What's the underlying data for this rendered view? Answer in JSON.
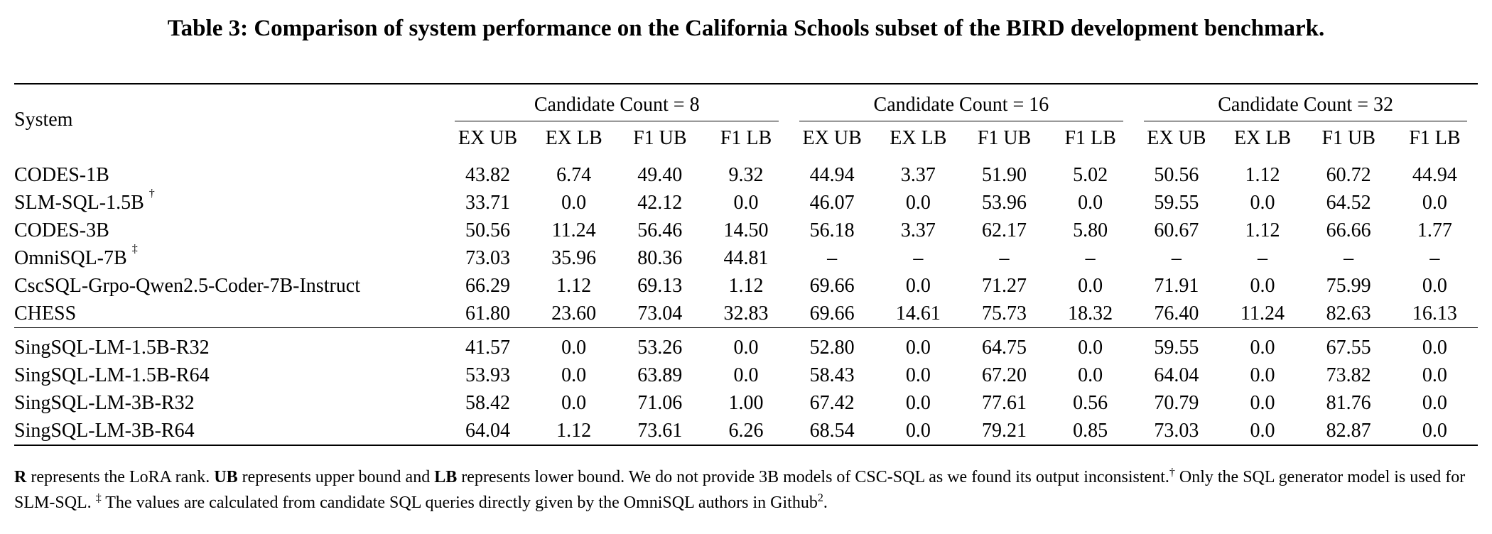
{
  "caption": "Table 3: Comparison of system performance on the California Schools subset of the BIRD development benchmark.",
  "header": {
    "system": "System",
    "groups": [
      "Candidate Count = 8",
      "Candidate Count = 16",
      "Candidate Count = 32"
    ],
    "metrics": [
      "EX UB",
      "EX LB",
      "F1 UB",
      "F1 LB"
    ]
  },
  "rows": [
    {
      "name": "CODES-1B",
      "mark": "",
      "values": [
        "43.82",
        "6.74",
        "49.40",
        "9.32",
        "44.94",
        "3.37",
        "51.90",
        "5.02",
        "50.56",
        "1.12",
        "60.72",
        "44.94"
      ],
      "bold": []
    },
    {
      "name": "SLM-SQL-1.5B",
      "mark": "†",
      "values": [
        "33.71",
        "0.0",
        "42.12",
        "0.0",
        "46.07",
        "0.0",
        "53.96",
        "0.0",
        "59.55",
        "0.0",
        "64.52",
        "0.0"
      ],
      "bold": []
    },
    {
      "name": "CODES-3B",
      "mark": "",
      "values": [
        "50.56",
        "11.24",
        "56.46",
        "14.50",
        "56.18",
        "3.37",
        "62.17",
        "5.80",
        "60.67",
        "1.12",
        "66.66",
        "1.77"
      ],
      "bold": []
    },
    {
      "name": "OmniSQL-7B",
      "mark": "‡",
      "values": [
        "73.03",
        "35.96",
        "80.36",
        "44.81",
        "–",
        "–",
        "–",
        "–",
        "–",
        "–",
        "–",
        "–"
      ],
      "bold": [
        2
      ]
    },
    {
      "name": "CscSQL-Grpo-Qwen2.5-Coder-7B-Instruct",
      "mark": "",
      "values": [
        "66.29",
        "1.12",
        "69.13",
        "1.12",
        "69.66",
        "0.0",
        "71.27",
        "0.0",
        "71.91",
        "0.0",
        "75.99",
        "0.0"
      ],
      "bold": []
    },
    {
      "name": "CHESS",
      "mark": "",
      "values": [
        "61.80",
        "23.60",
        "73.04",
        "32.83",
        "69.66",
        "14.61",
        "75.73",
        "18.32",
        "76.40",
        "11.24",
        "82.63",
        "16.13"
      ],
      "bold": [
        8,
        10
      ]
    }
  ],
  "ours": [
    {
      "name": "SingSQL-LM-1.5B-R32",
      "values": [
        "41.57",
        "0.0",
        "53.26",
        "0.0",
        "52.80",
        "0.0",
        "64.75",
        "0.0",
        "59.55",
        "0.0",
        "67.55",
        "0.0"
      ],
      "bold": []
    },
    {
      "name": "SingSQL-LM-1.5B-R64",
      "values": [
        "53.93",
        "0.0",
        "63.89",
        "0.0",
        "58.43",
        "0.0",
        "67.20",
        "0.0",
        "64.04",
        "0.0",
        "73.82",
        "0.0"
      ],
      "bold": []
    },
    {
      "name": "SingSQL-LM-3B-R32",
      "values": [
        "58.42",
        "0.0",
        "71.06",
        "1.00",
        "67.42",
        "0.0",
        "77.61",
        "0.56",
        "70.79",
        "0.0",
        "81.76",
        "0.0"
      ],
      "bold": []
    },
    {
      "name": "SingSQL-LM-3B-R64",
      "values": [
        "64.04",
        "1.12",
        "73.61",
        "6.26",
        "68.54",
        "0.0",
        "79.21",
        "0.85",
        "73.03",
        "0.0",
        "82.87",
        "0.0"
      ],
      "bold": [
        2,
        8,
        10
      ]
    }
  ],
  "footnote": {
    "r_key": "R",
    "r_text": " represents the LoRA rank. ",
    "ub_key": "UB",
    "ub_text": " represents upper bound and ",
    "lb_key": "LB",
    "lb_text": " represents lower bound. We do not provide 3B models of CSC-SQL as we found its output inconsistent.",
    "dagger": "†",
    "dagger_text": " Only the SQL generator model is used for SLM-SQL. ",
    "ddagger": "‡",
    "ddagger_text": " The values are calculated from candidate SQL queries directly given by the OmniSQL authors in Github",
    "ref": "2",
    "end": "."
  }
}
